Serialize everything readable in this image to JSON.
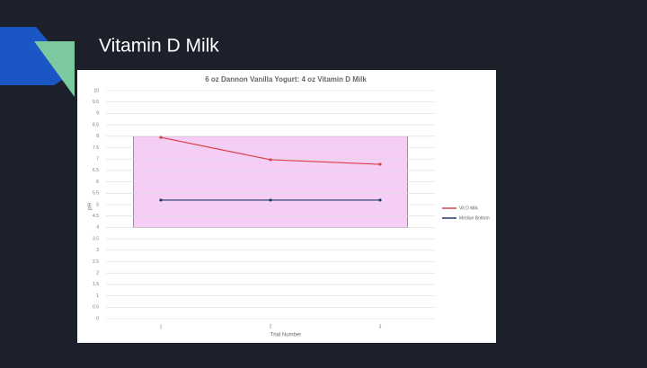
{
  "slide_title": "Vitamin D Milk",
  "chart_data": {
    "type": "line",
    "title": "6 oz Dannon Vanilla Yogurt: 4 oz Vitamin D Milk",
    "x_label": "Trial Number",
    "y_label": "pH",
    "categories": [
      "1",
      "2",
      "3"
    ],
    "series": [
      {
        "name": "Vit D Milk",
        "color": "#d9404a",
        "values": [
          7.95,
          6.97,
          6.77
        ]
      },
      {
        "name": "Median Bottom",
        "color": "#1f3864",
        "values": [
          5.2,
          5.2,
          5.2
        ]
      }
    ],
    "shaded_range": [
      4,
      8
    ],
    "shaded_color": "#f5cdf5",
    "ylim": [
      0,
      10
    ],
    "yticks": [
      0,
      0.5,
      1,
      1.5,
      2,
      2.5,
      3,
      3.5,
      4,
      4.5,
      5,
      5.5,
      6,
      6.5,
      7,
      7.5,
      8,
      8.5,
      9,
      9.5,
      10
    ],
    "grid": true,
    "legend": "right"
  }
}
